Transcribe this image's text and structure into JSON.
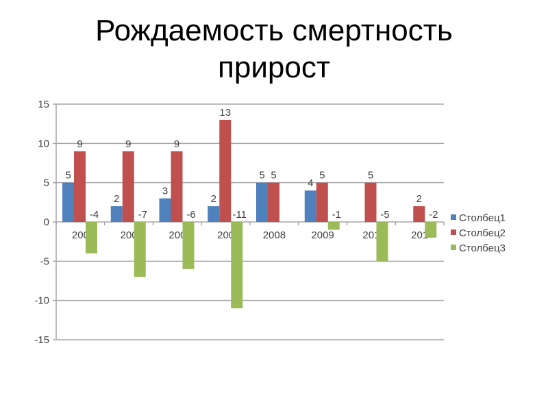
{
  "title": {
    "line1": "Рождаемость смертность",
    "line2": "прирост"
  },
  "colors": {
    "series1": "#4f81bd",
    "series2": "#c0504d",
    "series3": "#9bbb59",
    "grid": "#a6a6a6",
    "text": "#404040"
  },
  "chart_data": {
    "type": "bar",
    "title": "",
    "xlabel": "",
    "ylabel": "",
    "categories": [
      "200",
      "200",
      "200",
      "200",
      "2008",
      "2009",
      "201",
      "201"
    ],
    "series": [
      {
        "name": "Столбец1",
        "values": [
          5,
          2,
          3,
          2,
          5,
          4,
          null,
          null
        ]
      },
      {
        "name": "Столбец2",
        "values": [
          9,
          9,
          9,
          13,
          5,
          5,
          5,
          2
        ]
      },
      {
        "name": "Столбец3",
        "values": [
          -4,
          -7,
          -6,
          -11,
          null,
          -1,
          -5,
          -2
        ]
      }
    ],
    "ylim": [
      -15,
      15
    ],
    "yticks": [
      -15,
      -10,
      -5,
      0,
      5,
      10,
      15
    ],
    "grid": true,
    "legend_position": "right",
    "data_labels": true
  }
}
